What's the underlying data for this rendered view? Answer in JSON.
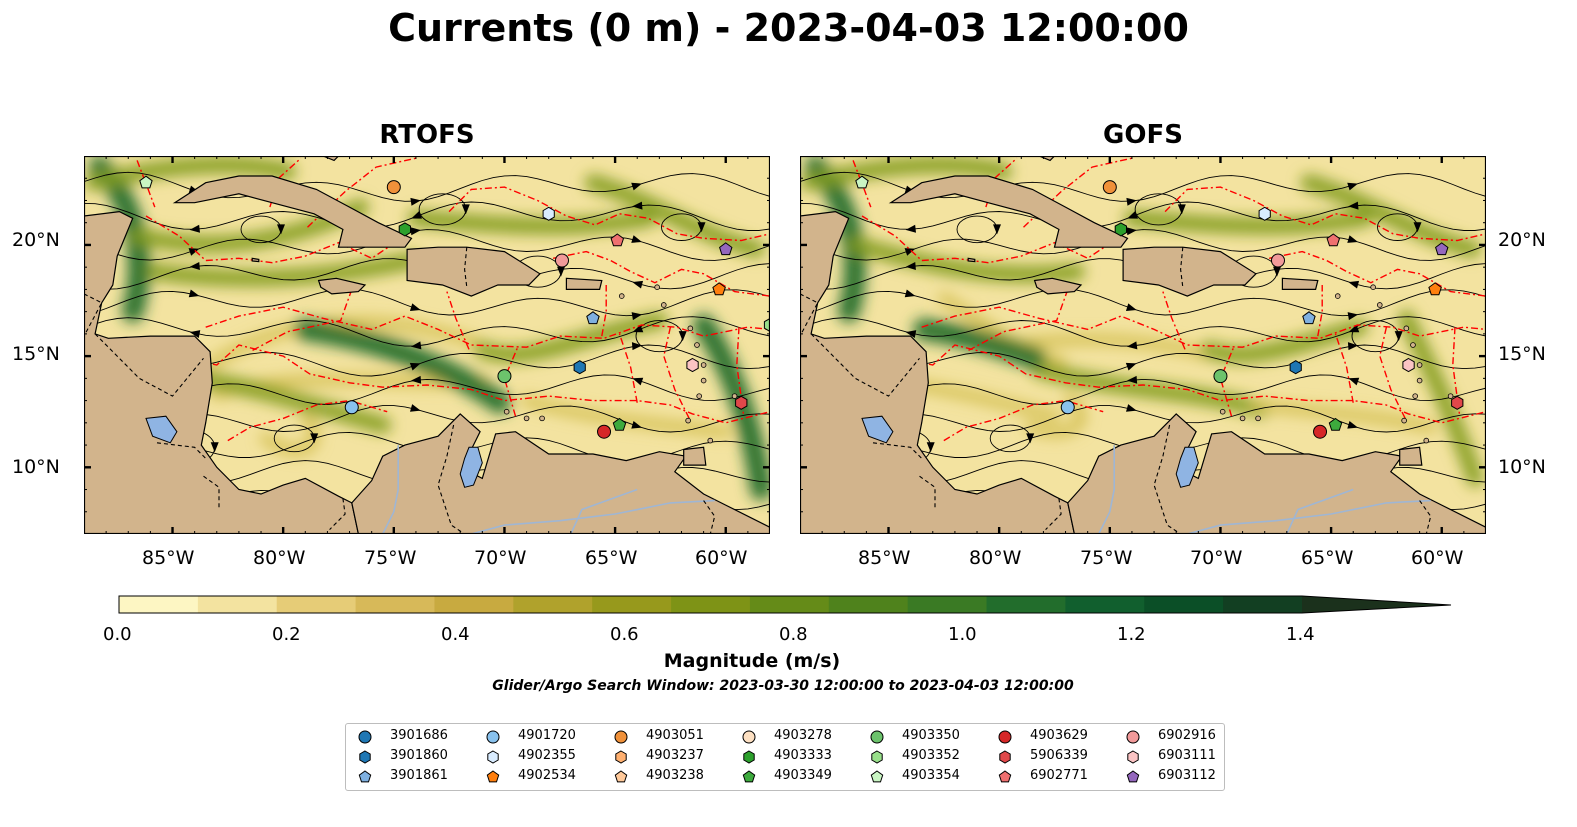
{
  "title": "Currents (0 m) - 2023-04-03 12:00:00",
  "panels": [
    {
      "id": "rtofs",
      "title": "RTOFS"
    },
    {
      "id": "gofs",
      "title": "GOFS"
    }
  ],
  "map": {
    "lon_range": [
      -89,
      -58
    ],
    "lat_range": [
      7,
      24
    ],
    "lon_ticks": [
      "85°W",
      "80°W",
      "75°W",
      "70°W",
      "65°W",
      "60°W"
    ],
    "lat_ticks": [
      "20°N",
      "15°N",
      "10°N"
    ],
    "colors": {
      "land": "#d2b48c",
      "lake": "#8fb4e3",
      "eez": "#ff0000",
      "border": "#000000"
    }
  },
  "colorbar": {
    "label": "Magnitude (m/s)",
    "ticks": [
      "0.0",
      "0.2",
      "0.4",
      "0.6",
      "0.8",
      "1.0",
      "1.2",
      "1.4"
    ],
    "range": [
      0,
      1.5
    ],
    "extend": "max",
    "colors": [
      "#fdf6c3",
      "#f3e3a0",
      "#e6cc77",
      "#d7b959",
      "#c8aa40",
      "#b0a22c",
      "#97991c",
      "#7e9316",
      "#658b18",
      "#4f821c",
      "#3a7a24",
      "#226d2c",
      "#115f2e",
      "#0b4f27",
      "#123f22",
      "#1b311c"
    ]
  },
  "search_window": "Glider/Argo Search Window: 2023-03-30 12:00:00 to 2023-04-03 12:00:00",
  "floats": [
    {
      "id": "3901686",
      "color": "#1f77b4",
      "marker": "circle"
    },
    {
      "id": "3901860",
      "color": "#1f77b4",
      "marker": "hexagon"
    },
    {
      "id": "3901861",
      "color": "#7fb0e0",
      "marker": "pentagon"
    },
    {
      "id": "4901720",
      "color": "#89c2ee",
      "marker": "circle"
    },
    {
      "id": "4902355",
      "color": "#d9ecff",
      "marker": "hexagon"
    },
    {
      "id": "4902534",
      "color": "#ff7f0e",
      "marker": "pentagon"
    },
    {
      "id": "4903051",
      "color": "#f0913a",
      "marker": "circle"
    },
    {
      "id": "4903237",
      "color": "#ffb070",
      "marker": "hexagon"
    },
    {
      "id": "4903238",
      "color": "#ffc99a",
      "marker": "pentagon"
    },
    {
      "id": "4903278",
      "color": "#fde0c2",
      "marker": "circle"
    },
    {
      "id": "4903333",
      "color": "#2ca02c",
      "marker": "hexagon"
    },
    {
      "id": "4903349",
      "color": "#3daa3d",
      "marker": "pentagon"
    },
    {
      "id": "4903350",
      "color": "#6cc36c",
      "marker": "circle"
    },
    {
      "id": "4903352",
      "color": "#98df8a",
      "marker": "hexagon"
    },
    {
      "id": "4903354",
      "color": "#c9f5c3",
      "marker": "pentagon"
    },
    {
      "id": "4903629",
      "color": "#d62728",
      "marker": "circle"
    },
    {
      "id": "5906339",
      "color": "#e0484a",
      "marker": "hexagon"
    },
    {
      "id": "6902771",
      "color": "#ef7070",
      "marker": "pentagon"
    },
    {
      "id": "6902916",
      "color": "#f29a9a",
      "marker": "circle"
    },
    {
      "id": "6903111",
      "color": "#fbc4c4",
      "marker": "hexagon"
    },
    {
      "id": "6903112",
      "color": "#9467bd",
      "marker": "pentagon"
    }
  ],
  "positions": {
    "rtofs": [
      {
        "id": "4903354",
        "lon": -86.2,
        "lat": 22.8
      },
      {
        "id": "4903051",
        "lon": -75.0,
        "lat": 22.6
      },
      {
        "id": "4903333",
        "lon": -74.5,
        "lat": 20.7
      },
      {
        "id": "4902355",
        "lon": -68.0,
        "lat": 21.4
      },
      {
        "id": "6902771",
        "lon": -64.9,
        "lat": 20.2
      },
      {
        "id": "6902916",
        "lon": -67.4,
        "lat": 19.3
      },
      {
        "id": "6903112",
        "lon": -60.0,
        "lat": 19.8
      },
      {
        "id": "4902534",
        "lon": -60.3,
        "lat": 18.0
      },
      {
        "id": "3901861",
        "lon": -66.0,
        "lat": 16.7
      },
      {
        "id": "3901860",
        "lon": -66.6,
        "lat": 14.5
      },
      {
        "id": "4903350",
        "lon": -70.0,
        "lat": 14.1
      },
      {
        "id": "6903111",
        "lon": -61.5,
        "lat": 14.6
      },
      {
        "id": "4901720",
        "lon": -76.9,
        "lat": 12.7
      },
      {
        "id": "4903629",
        "lon": -65.5,
        "lat": 11.6
      },
      {
        "id": "4903349",
        "lon": -64.8,
        "lat": 11.9
      },
      {
        "id": "5906339",
        "lon": -59.3,
        "lat": 12.9
      },
      {
        "id": "4903352",
        "lon": -58.0,
        "lat": 16.4
      }
    ],
    "gofs": [
      {
        "id": "4903354",
        "lon": -86.2,
        "lat": 22.8
      },
      {
        "id": "4903051",
        "lon": -75.0,
        "lat": 22.6
      },
      {
        "id": "4903333",
        "lon": -74.5,
        "lat": 20.7
      },
      {
        "id": "4902355",
        "lon": -68.0,
        "lat": 21.4
      },
      {
        "id": "6902771",
        "lon": -64.9,
        "lat": 20.2
      },
      {
        "id": "6902916",
        "lon": -67.4,
        "lat": 19.3
      },
      {
        "id": "6903112",
        "lon": -60.0,
        "lat": 19.8
      },
      {
        "id": "4902534",
        "lon": -60.3,
        "lat": 18.0
      },
      {
        "id": "3901861",
        "lon": -66.0,
        "lat": 16.7
      },
      {
        "id": "3901860",
        "lon": -66.6,
        "lat": 14.5
      },
      {
        "id": "4903350",
        "lon": -70.0,
        "lat": 14.1
      },
      {
        "id": "6903111",
        "lon": -61.5,
        "lat": 14.6
      },
      {
        "id": "4901720",
        "lon": -76.9,
        "lat": 12.7
      },
      {
        "id": "4903629",
        "lon": -65.5,
        "lat": 11.6
      },
      {
        "id": "4903349",
        "lon": -64.8,
        "lat": 11.9
      },
      {
        "id": "5906339",
        "lon": -59.3,
        "lat": 12.9
      }
    ]
  }
}
